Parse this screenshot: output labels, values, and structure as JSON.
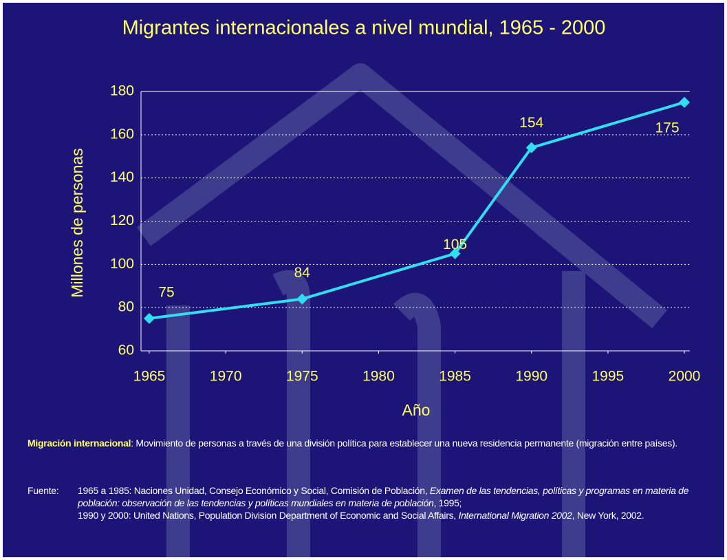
{
  "chart_data": {
    "type": "line",
    "title": "Migrantes internacionales a nivel mundial, 1965 - 2000",
    "x_label": "Año",
    "y_label": "Millones de personas",
    "x": [
      1965,
      1975,
      1985,
      1990,
      2000
    ],
    "values": [
      75,
      84,
      105,
      154,
      175
    ],
    "color": "#33ddf0",
    "xlim": [
      1965,
      2000
    ],
    "xticks": [
      1965,
      1970,
      1975,
      1980,
      1985,
      1990,
      1995,
      2000
    ],
    "ylim": [
      60,
      180
    ],
    "yticks": [
      60,
      80,
      100,
      120,
      140,
      160,
      180
    ],
    "grid": true
  },
  "notes": {
    "definition_term": "Migración internacional",
    "definition_text": ": Movimiento de personas a través de una división política para establecer una nueva residencia permanente (migración entre países).",
    "source_label": "Fuente:",
    "source_parts": [
      "1965 a 1985: Naciones Unidad, Consejo Económico y Social, Comisión de Población, ",
      "Examen de las tendencias, políticas y programas en materia de población: observación de las tendencias y políticas mundiales en materia de población",
      ", 1995;",
      "1990 y 2000: United Nations, Population Division Department of Economic and Social Affairs, ",
      "International Migration 2002",
      ", New York, 2002."
    ]
  }
}
